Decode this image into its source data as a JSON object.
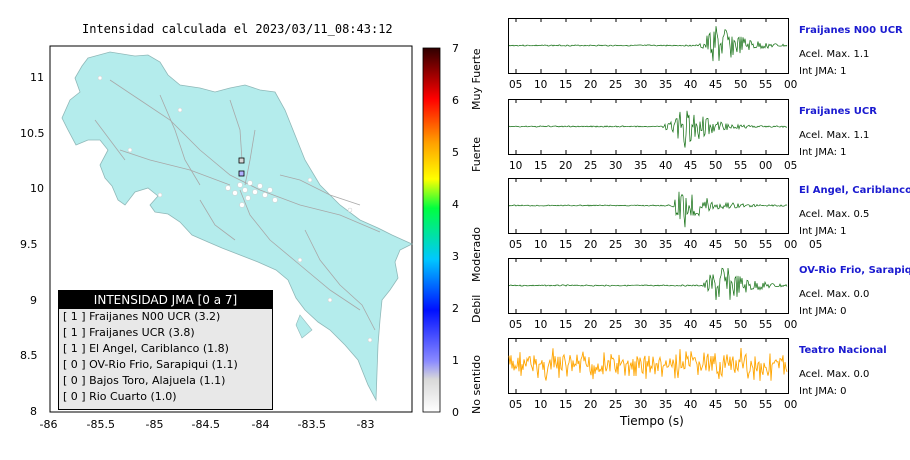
{
  "map": {
    "title": "Intensidad calculada el 2023/03/11_08:43:12",
    "x_ticks": [
      "-86",
      "-85.5",
      "-85",
      "-84.5",
      "-84",
      "-83.5",
      "-83"
    ],
    "y_ticks": [
      "11",
      "10.5",
      "10",
      "9.5",
      "9",
      "8.5",
      "8"
    ],
    "land_color": "#b4ecec",
    "sea_color": "#ffffff"
  },
  "legend": {
    "header": "INTENSIDAD JMA [0 a 7]",
    "rows": [
      "[ 1 ]  Fraijanes N00 UCR (3.2)",
      "[ 1 ]  Fraijanes UCR (3.8)",
      "[ 1 ]  El Angel, Cariblanco (1.8)",
      "[ 0 ]  OV-Rio Frio, Sarapiqui (1.1)",
      "[ 0 ]  Bajos Toro, Alajuela (1.1)",
      "[ 0 ]  Rio Cuarto (1.0)"
    ]
  },
  "scale": {
    "ticks": [
      "7",
      "6",
      "5",
      "4",
      "3",
      "2",
      "1",
      "0"
    ],
    "labels": [
      "Muy Fuerte",
      "Fuerte",
      "Moderado",
      "Debil",
      "No sentido"
    ]
  },
  "stations": [
    {
      "name": "Fraijanes N00 UCR",
      "acel": "Acel. Max. 1.1",
      "int": "Int JMA: 1",
      "ticks": [
        "05",
        "10",
        "15",
        "20",
        "25",
        "30",
        "35",
        "40",
        "45",
        "50",
        "55",
        "00"
      ],
      "color": "#0a6a0a",
      "start": 0.68,
      "peak": 0.75
    },
    {
      "name": "Fraijanes UCR",
      "acel": "Acel. Max. 1.1",
      "int": "Int JMA: 1",
      "ticks": [
        "10",
        "15",
        "20",
        "25",
        "30",
        "35",
        "40",
        "45",
        "50",
        "55",
        "00",
        "05"
      ],
      "color": "#0a6a0a",
      "start": 0.55,
      "peak": 0.63
    },
    {
      "name": "El Angel, Cariblanco",
      "acel": "Acel. Max. 0.5",
      "int": "Int JMA: 1",
      "ticks": [
        "05",
        "10",
        "15",
        "20",
        "25",
        "30",
        "35",
        "40",
        "45",
        "50",
        "55",
        "00",
        "05"
      ],
      "color": "#0a6a0a",
      "start": 0.58,
      "peak": 0.63
    },
    {
      "name": "OV-Rio Frio, Sarapiqui",
      "acel": "Acel. Max. 0.0",
      "int": "Int JMA: 0",
      "ticks": [
        "05",
        "10",
        "15",
        "20",
        "25",
        "30",
        "35",
        "40",
        "45",
        "50",
        "55",
        "00"
      ],
      "color": "#0a6a0a",
      "start": 0.69,
      "peak": 0.76
    },
    {
      "name": "Teatro Nacional",
      "acel": "Acel. Max. 0.0",
      "int": "Int JMA: 0",
      "ticks": [
        "05",
        "10",
        "15",
        "20",
        "25",
        "30",
        "35",
        "40",
        "45",
        "50",
        "55",
        "00"
      ],
      "color": "#ffa500",
      "start": 0.0,
      "peak": -1
    }
  ],
  "time_label": "Tiempo (s)"
}
